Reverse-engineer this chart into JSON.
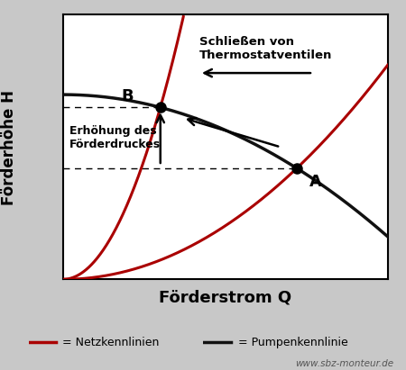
{
  "background_color": "#c8c8c8",
  "plot_bg_color": "#ffffff",
  "title_xlabel": "Förderstrom Q",
  "title_ylabel": "Förderhöhe H",
  "xlabel_fontsize": 13,
  "ylabel_fontsize": 12,
  "pump_curve_color": "#111111",
  "net_curve_color": "#aa0000",
  "point_A": [
    0.72,
    0.42
  ],
  "point_B": [
    0.3,
    0.65
  ],
  "point_label_fontsize": 13,
  "legend_line_red": "= Netzkennlinien",
  "legend_line_black": "= Pumpenkennlinie",
  "watermark": "www.sbz-monteur.de",
  "arrow_label_top": "Schließen von\nThermostatventilen",
  "arrow_label_left": "Erhöhung des\nFörderdruckes"
}
